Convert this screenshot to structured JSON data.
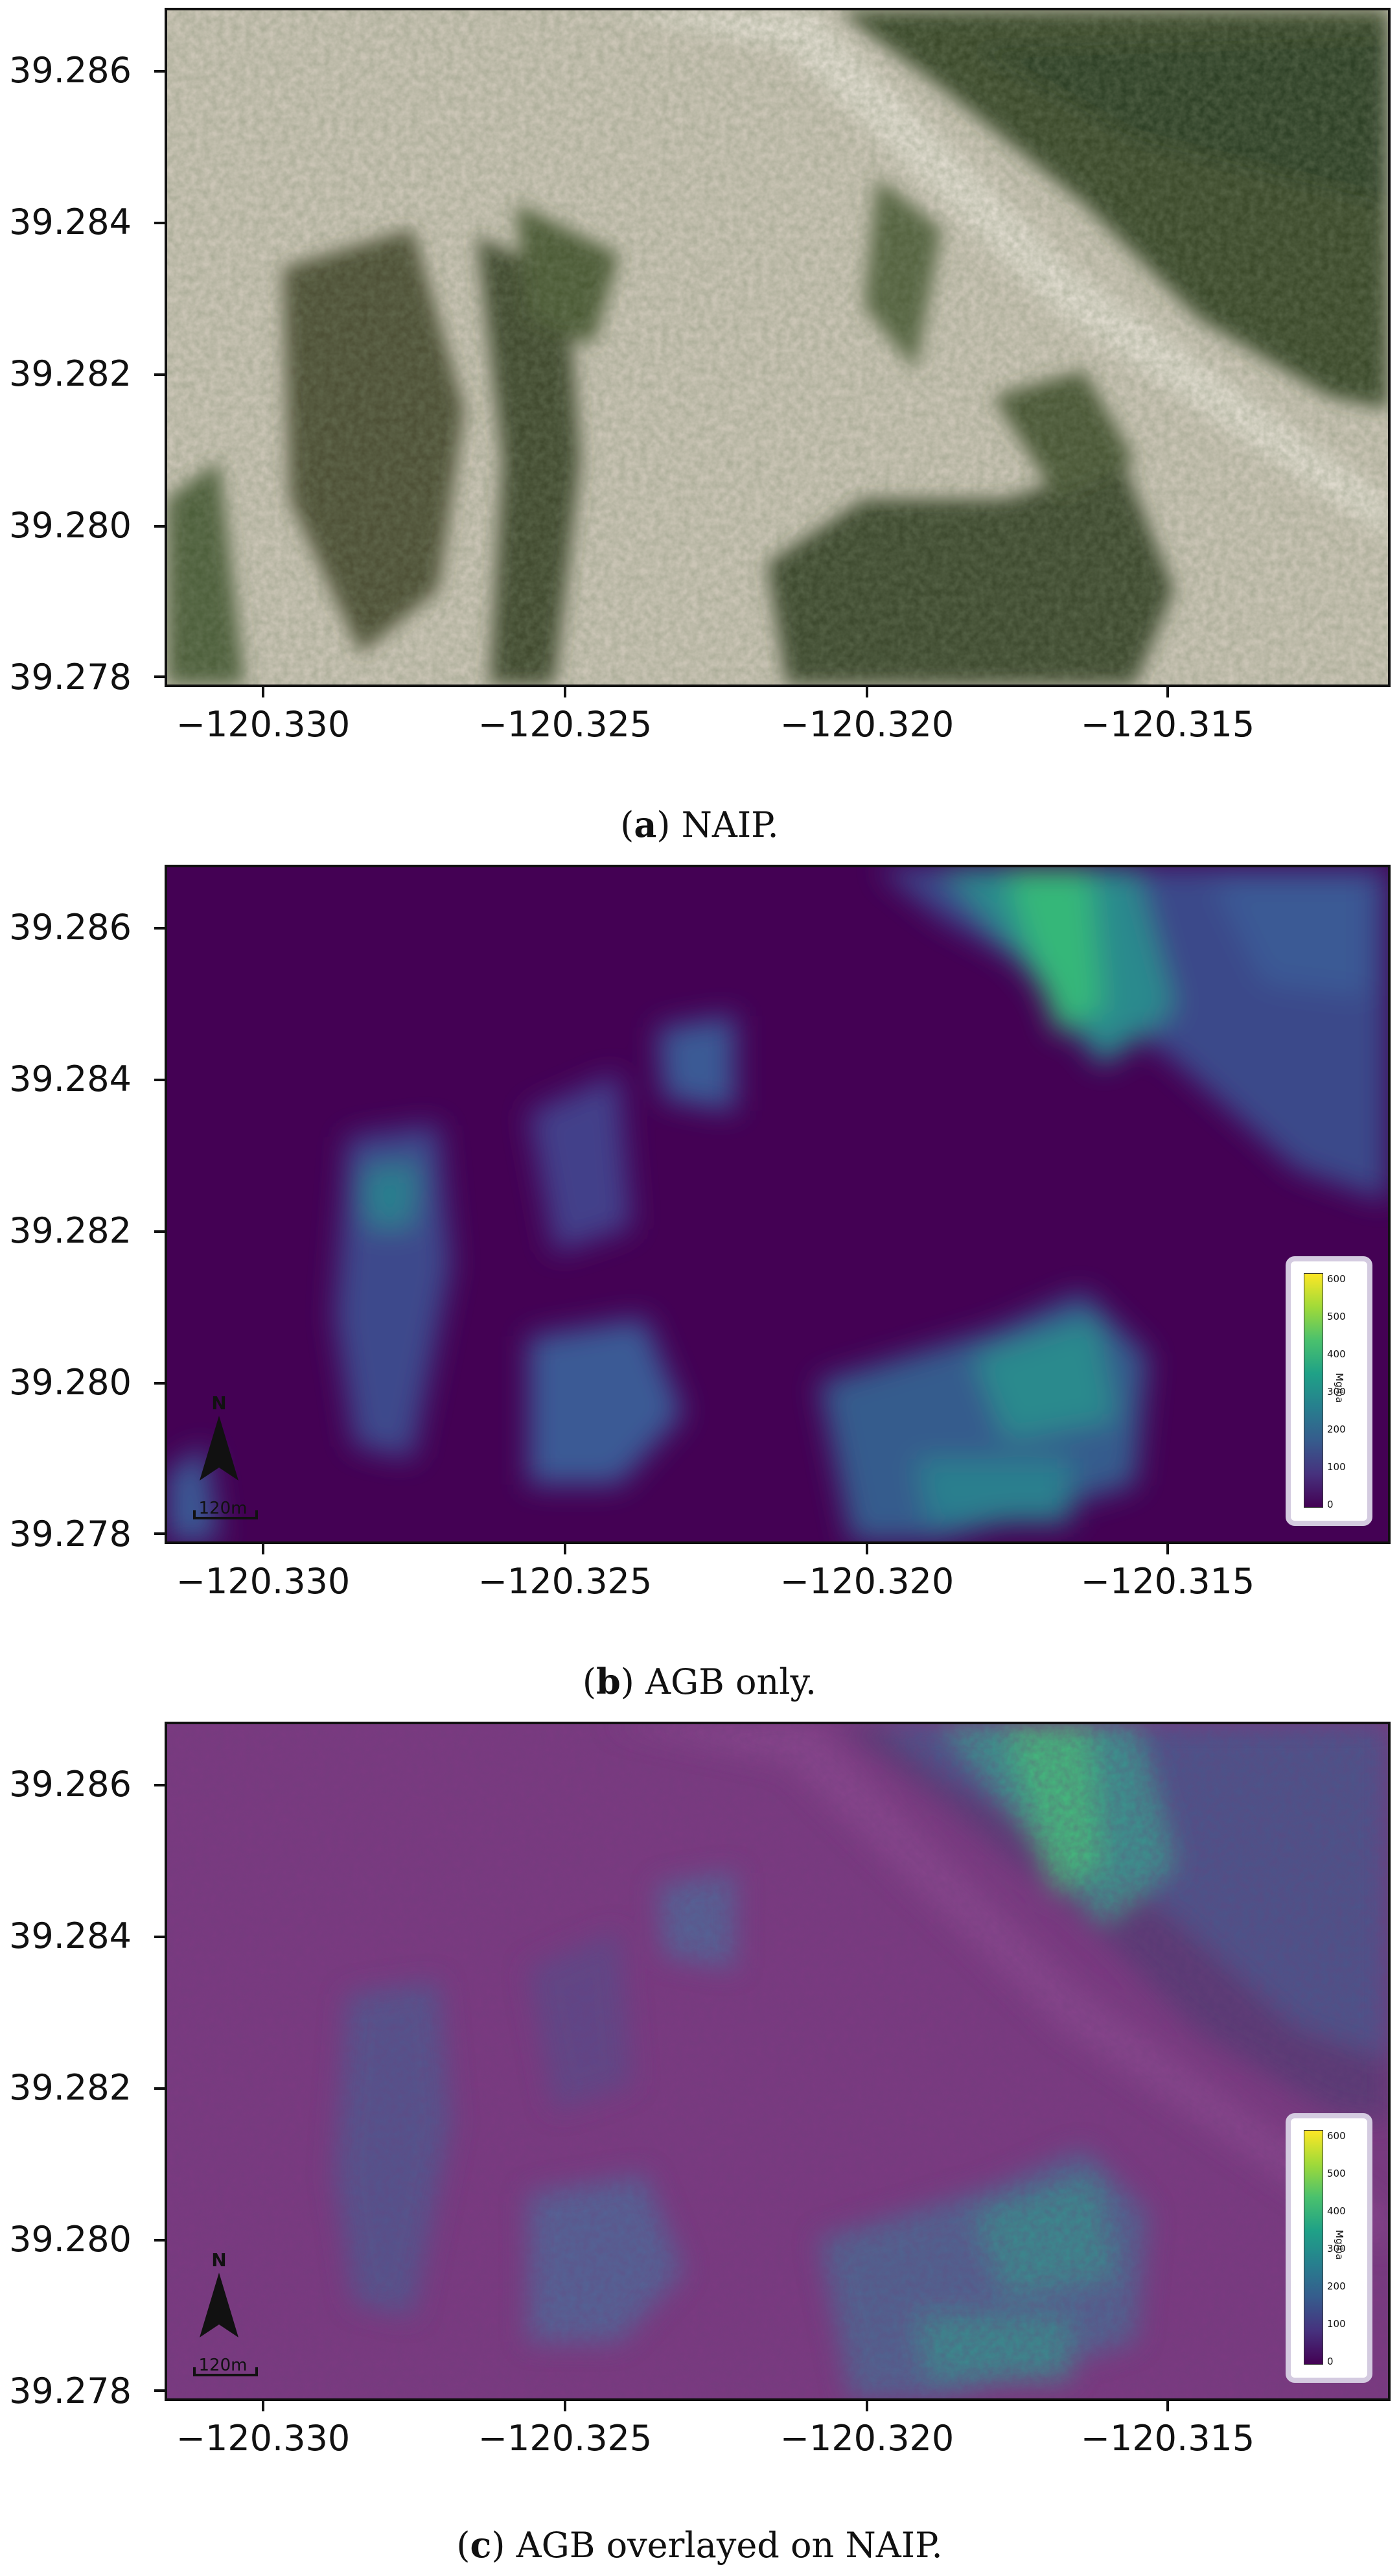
{
  "axes": {
    "y_ticks": [
      "39.286",
      "39.284",
      "39.282",
      "39.280",
      "39.278"
    ],
    "x_ticks": [
      "−120.330",
      "−120.325",
      "−120.320",
      "−120.315"
    ]
  },
  "panels": [
    {
      "id": "a",
      "caption_letter": "a",
      "caption_text": " NAIP.",
      "kind": "naip"
    },
    {
      "id": "b",
      "caption_letter": "b",
      "caption_text": " AGB only.",
      "kind": "agb"
    },
    {
      "id": "c",
      "caption_letter": "c",
      "caption_text": " AGB overlayed on NAIP.",
      "kind": "overlay"
    }
  ],
  "legend": {
    "unit": "Mg/ha",
    "ticks": [
      "600",
      "500",
      "400",
      "300",
      "200",
      "100",
      "0"
    ]
  },
  "north_arrow": {
    "label": "N"
  },
  "scale_bar": {
    "label": "120m"
  },
  "colors": {
    "agb_low": "#440154",
    "agb_mid": "#31688e",
    "agb_high": "#35b779",
    "naip_bare": "#cfc9bb",
    "naip_forest": "#3c4a2c",
    "legend_border": "#d4cbe0"
  }
}
